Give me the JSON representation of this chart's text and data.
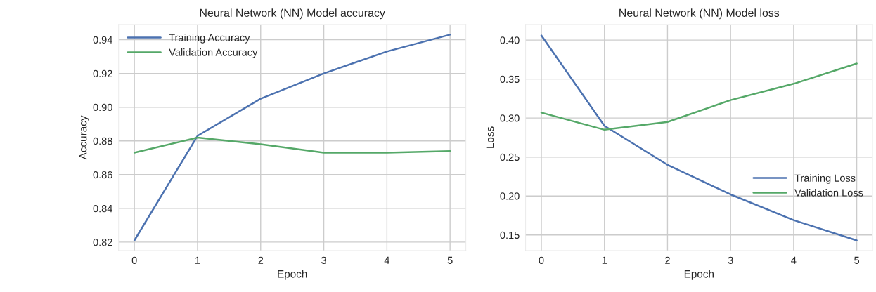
{
  "chart_data": [
    {
      "type": "line",
      "title": "Neural Network (NN) Model accuracy",
      "xlabel": "Epoch",
      "ylabel": "Accuracy",
      "x": [
        0,
        1,
        2,
        3,
        4,
        5
      ],
      "series": [
        {
          "name": "Training Accuracy",
          "color": "#4c72b0",
          "values": [
            0.821,
            0.883,
            0.905,
            0.92,
            0.933,
            0.943
          ]
        },
        {
          "name": "Validation Accuracy",
          "color": "#55a868",
          "values": [
            0.873,
            0.882,
            0.878,
            0.873,
            0.873,
            0.874
          ]
        }
      ],
      "xlim": [
        -0.25,
        5.25
      ],
      "ylim": [
        0.815,
        0.949
      ],
      "xticks": [
        0,
        1,
        2,
        3,
        4,
        5
      ],
      "yticks": [
        0.82,
        0.84,
        0.86,
        0.88,
        {
          "value": 0.9,
          "label": "0.90"
        },
        0.92,
        0.94
      ],
      "grid": true,
      "legend": "top left"
    },
    {
      "type": "line",
      "title": "Neural Network (NN) Model loss",
      "xlabel": "Epoch",
      "ylabel": "Loss",
      "x": [
        0,
        1,
        2,
        3,
        4,
        5
      ],
      "series": [
        {
          "name": "Training Loss",
          "color": "#4c72b0",
          "values": [
            0.406,
            0.29,
            0.24,
            0.202,
            0.169,
            0.143
          ]
        },
        {
          "name": "Validation Loss",
          "color": "#55a868",
          "values": [
            0.307,
            0.285,
            0.295,
            0.323,
            0.344,
            0.37
          ]
        }
      ],
      "xlim": [
        -0.25,
        5.25
      ],
      "ylim": [
        0.13,
        0.42
      ],
      "xticks": [
        0,
        1,
        2,
        3,
        4,
        5
      ],
      "yticks": [
        0.15,
        {
          "value": 0.2,
          "label": "0.20"
        },
        0.25,
        {
          "value": 0.3,
          "label": "0.30"
        },
        0.35,
        {
          "value": 0.4,
          "label": "0.40"
        }
      ],
      "grid": true,
      "legend": "bottom right"
    }
  ]
}
